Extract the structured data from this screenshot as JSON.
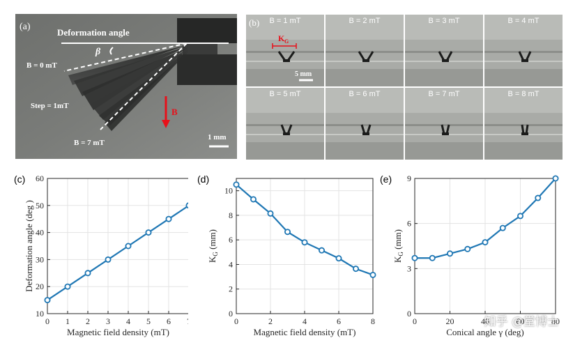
{
  "panel_a": {
    "label": "(a)",
    "title": "Deformation angle",
    "angle_symbol": "β",
    "b_start": "B = 0 mT",
    "step": "Step = 1mT",
    "b_end": "B = 7 mT",
    "field_arrow": "B",
    "scale": "1 mm",
    "colors": {
      "field_arrow": "#e8101a"
    }
  },
  "panel_b": {
    "label": "(b)",
    "frames": [
      "B = 1 mT",
      "B = 2 mT",
      "B = 3 mT",
      "B = 4 mT",
      "B = 5 mT",
      "B = 6 mT",
      "B = 7 mT",
      "B = 8 mT"
    ],
    "kg_label": "K",
    "kg_sub": "G",
    "scale": "5 mm",
    "colors": {
      "kg": "#e8101a"
    }
  },
  "chart_data": [
    {
      "type": "line",
      "label": "(c)",
      "x": [
        0,
        1,
        2,
        3,
        4,
        5,
        6,
        7
      ],
      "y": [
        15,
        20,
        25,
        30,
        35,
        40,
        45,
        50
      ],
      "xlabel": "Magnetic field density (mT)",
      "ylabel": "Deformation angle (deg )",
      "xlim": [
        0,
        7
      ],
      "ylim": [
        10,
        60
      ],
      "xticks": [
        "0",
        "1",
        "2",
        "3",
        "4",
        "5",
        "6",
        "7"
      ],
      "yticks": [
        "10",
        "20",
        "30",
        "40",
        "50",
        "60"
      ],
      "grid": true,
      "color": "#1f77b4"
    },
    {
      "type": "line",
      "label": "(d)",
      "x": [
        0,
        1,
        2,
        3,
        4,
        5,
        6,
        7,
        8
      ],
      "y": [
        10.5,
        9.3,
        8.15,
        6.65,
        5.8,
        5.15,
        4.5,
        3.65,
        3.15
      ],
      "xlabel": "Magnetic field density (mT)",
      "ylabel_main": "K",
      "ylabel_sub": "G",
      "ylabel_unit": " (mm)",
      "xlim": [
        0,
        8
      ],
      "ylim": [
        0,
        11
      ],
      "xticks": [
        "0",
        "2",
        "4",
        "6",
        "8"
      ],
      "yticks": [
        "0",
        "2",
        "4",
        "6",
        "8",
        "10"
      ],
      "grid": true,
      "color": "#1f77b4"
    },
    {
      "type": "line",
      "label": "(e)",
      "x": [
        0,
        10,
        20,
        30,
        40,
        50,
        60,
        70,
        80
      ],
      "y": [
        3.7,
        3.7,
        4.0,
        4.3,
        4.75,
        5.7,
        6.5,
        7.7,
        9.0
      ],
      "xlabel": "Conical angle γ  (deg)",
      "ylabel_main": "K",
      "ylabel_sub": "G",
      "ylabel_unit": " (mm)",
      "xlim": [
        0,
        80
      ],
      "ylim": [
        0,
        9
      ],
      "xticks": [
        "0",
        "20",
        "40",
        "60",
        "80"
      ],
      "yticks": [
        "0",
        "3",
        "6",
        "9"
      ],
      "grid": true,
      "color": "#1f77b4"
    }
  ],
  "watermark": "知乎 @堂博士"
}
